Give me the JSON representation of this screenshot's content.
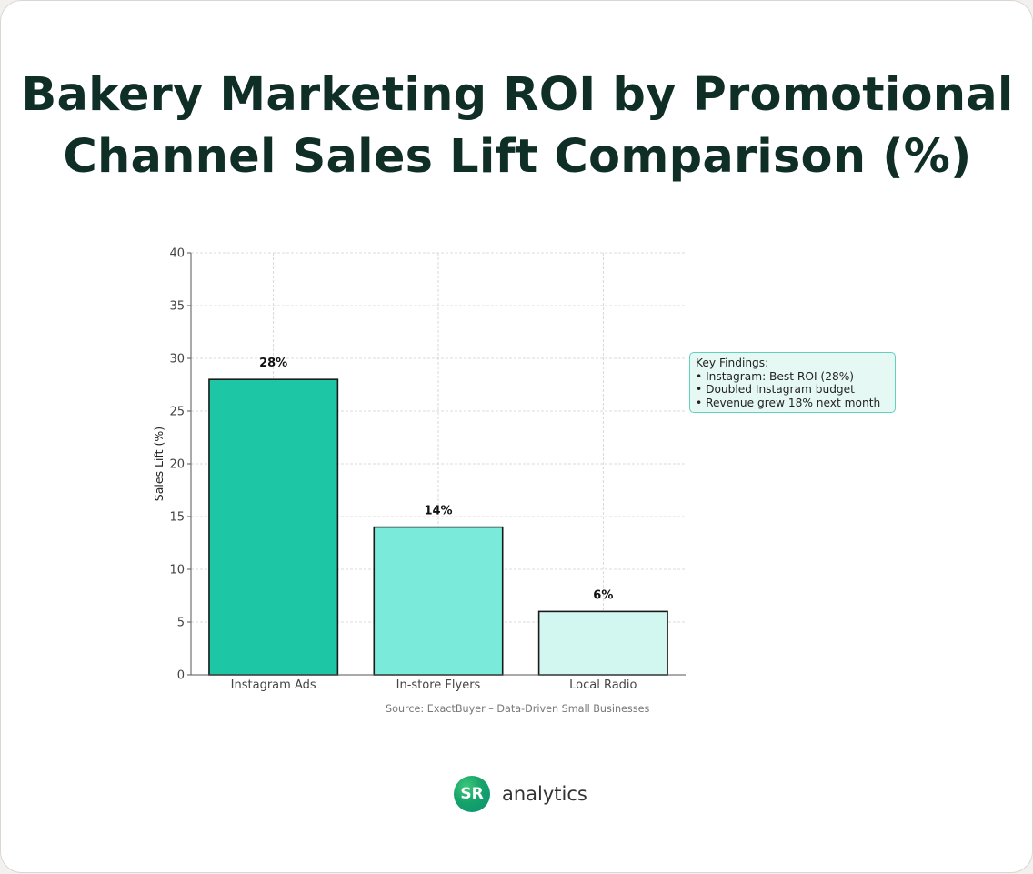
{
  "title_lines": [
    "Bakery Marketing ROI by Promotional",
    "Channel Sales Lift Comparison (%)"
  ],
  "findings": {
    "heading": "Key Findings:",
    "items": [
      "• Instagram: Best ROI (28%)",
      "• Doubled Instagram budget",
      "• Revenue grew 18% next month"
    ]
  },
  "source": "Source: ExactBuyer – Data-Driven Small Businesses",
  "brand": {
    "logo_text": "SR",
    "name": "analytics"
  },
  "chart_data": {
    "type": "bar",
    "categories": [
      "Instagram Ads",
      "In-store Flyers",
      "Local Radio"
    ],
    "values": [
      28,
      14,
      6
    ],
    "value_labels": [
      "28%",
      "14%",
      "6%"
    ],
    "bar_colors": [
      "#1dc6a4",
      "#7aeadb",
      "#d2f7f0"
    ],
    "xlabel": "",
    "ylabel": "Sales Lift (%)",
    "ylim": [
      0,
      40
    ],
    "yticks": [
      0,
      5,
      10,
      15,
      20,
      25,
      30,
      35,
      40
    ],
    "grid": true
  }
}
